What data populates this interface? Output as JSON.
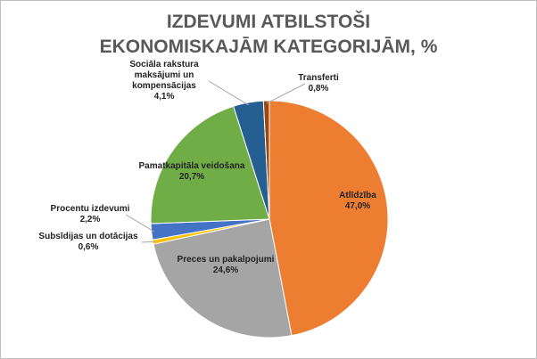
{
  "chart_data": {
    "type": "pie",
    "title": "IZDEVUMI ATBILSTOŠI EKONOMISKAJĀM KATEGORIJĀM, %",
    "categories": [
      "Atlīdzība",
      "Preces un pakalpojumi",
      "Subsīdijas un dotācijas",
      "Procentu izdevumi",
      "Pamatkapitāla veidošana",
      "Sociāla rakstura maksājumi un kompensācijas",
      "Transferti"
    ],
    "values": [
      47.0,
      24.6,
      0.6,
      2.2,
      20.7,
      4.1,
      0.8
    ],
    "value_labels": [
      "47,0%",
      "24,6%",
      "0,6%",
      "2,2%",
      "20,7%",
      "4,1%",
      "0,8%"
    ],
    "colors": [
      "#ed7d31",
      "#a5a5a5",
      "#ffc000",
      "#4472c4",
      "#70ad47",
      "#255e91",
      "#9e480e"
    ]
  }
}
